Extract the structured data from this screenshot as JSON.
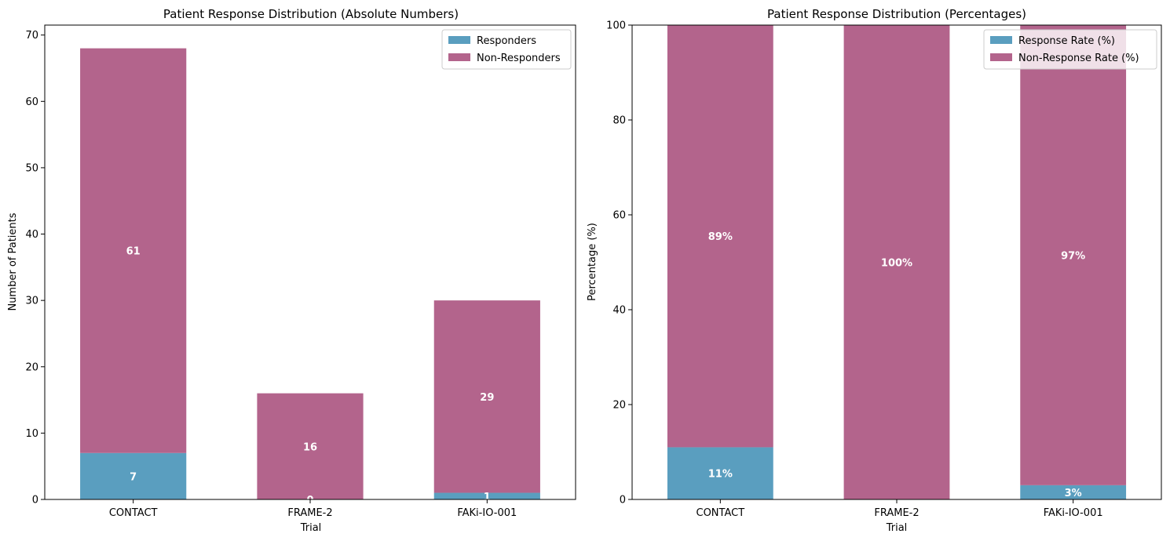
{
  "colors": {
    "responders": "#5a9ebf",
    "non_responders": "#b3648c"
  },
  "chart_data": [
    {
      "type": "bar",
      "stacked": true,
      "title": "Patient Response Distribution (Absolute Numbers)",
      "xlabel": "Trial",
      "ylabel": "Number of Patients",
      "categories": [
        "CONTACT",
        "FRAME-2",
        "FAKi-IO-001"
      ],
      "ylim": [
        0,
        71.5
      ],
      "yticks": [
        0,
        10,
        20,
        30,
        40,
        50,
        60,
        70
      ],
      "series": [
        {
          "name": "Responders",
          "values": [
            7,
            0,
            1
          ],
          "labels": [
            "7",
            "0",
            "1"
          ]
        },
        {
          "name": "Non-Responders",
          "values": [
            61,
            16,
            29
          ],
          "labels": [
            "61",
            "16",
            "29"
          ]
        }
      ],
      "legend": "top-right",
      "grid": false
    },
    {
      "type": "bar",
      "stacked": true,
      "title": "Patient Response Distribution (Percentages)",
      "xlabel": "Trial",
      "ylabel": "Percentage (%)",
      "categories": [
        "CONTACT",
        "FRAME-2",
        "FAKi-IO-001"
      ],
      "ylim": [
        0,
        100
      ],
      "yticks": [
        0,
        20,
        40,
        60,
        80,
        100
      ],
      "series": [
        {
          "name": "Response Rate (%)",
          "values": [
            11,
            0,
            3
          ],
          "labels": [
            "11%",
            "",
            "3%"
          ]
        },
        {
          "name": "Non-Response Rate (%)",
          "values": [
            89,
            100,
            97
          ],
          "labels": [
            "89%",
            "100%",
            "97%"
          ]
        }
      ],
      "legend": "top-right",
      "grid": false
    }
  ]
}
